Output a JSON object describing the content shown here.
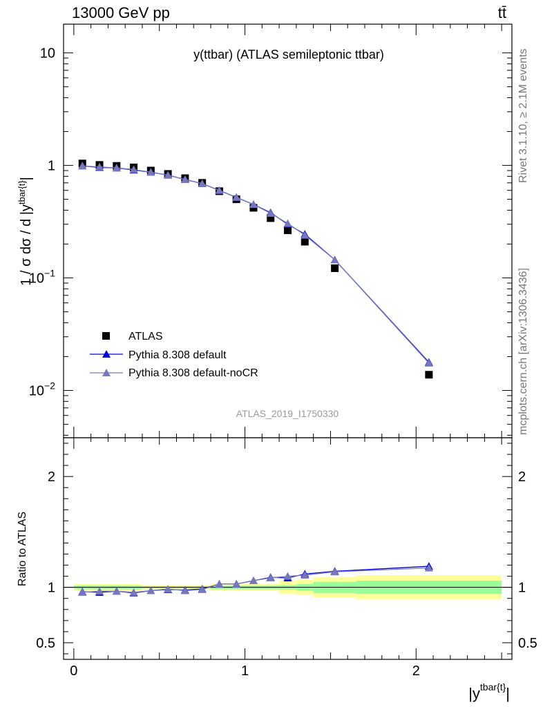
{
  "header": {
    "energy_label": "13000 GeV pp",
    "process_label": "tt̄",
    "analysis_id": "ATLAS_2019_I1750330",
    "rivet_label": "Rivet 3.1.10, ≥ 2.1M events",
    "mcplots_label": "mcplots.cern.ch [arXiv:1306.3436]"
  },
  "chart_data": [
    {
      "type": "scatter",
      "title": "y(ttbar) (ATLAS semileptonic ttbar)",
      "ylabel": "1 / σ dσ / d |y^{tbar{t}}|",
      "yscale": "log",
      "xlim": [
        -0.06,
        2.56
      ],
      "ylim": [
        0.0038,
        18
      ],
      "yticks": [
        {
          "value": 0.01,
          "base": "10",
          "exp": "−2"
        },
        {
          "value": 0.1,
          "base": "10",
          "exp": "−1"
        },
        {
          "value": 1,
          "label": "1"
        },
        {
          "value": 10,
          "label": "10"
        }
      ],
      "legend": {
        "placement": "bottom-left"
      },
      "series": [
        {
          "name": "ATLAS",
          "color": "#000000",
          "marker": "square",
          "line": false,
          "x": [
            0.05,
            0.15,
            0.25,
            0.35,
            0.45,
            0.55,
            0.65,
            0.75,
            0.85,
            0.95,
            1.05,
            1.15,
            1.25,
            1.35,
            1.525,
            2.075
          ],
          "values": [
            1.04,
            1.01,
            0.99,
            0.96,
            0.9,
            0.84,
            0.77,
            0.7,
            0.59,
            0.5,
            0.42,
            0.34,
            0.265,
            0.21,
            0.122,
            0.0138
          ]
        },
        {
          "name": "Pythia 8.308 default",
          "color": "#0000dd",
          "marker": "triangle",
          "line": true,
          "x": [
            0.05,
            0.15,
            0.25,
            0.35,
            0.45,
            0.55,
            0.65,
            0.75,
            0.85,
            0.95,
            1.05,
            1.15,
            1.25,
            1.35,
            1.525,
            2.075
          ],
          "values": [
            0.99,
            0.96,
            0.95,
            0.91,
            0.87,
            0.82,
            0.75,
            0.69,
            0.6,
            0.52,
            0.45,
            0.38,
            0.3,
            0.245,
            0.145,
            0.0178
          ]
        },
        {
          "name": "Pythia 8.308 default-noCR",
          "color": "#7777bb",
          "marker": "triangle",
          "line": true,
          "x": [
            0.05,
            0.15,
            0.25,
            0.35,
            0.45,
            0.55,
            0.65,
            0.75,
            0.85,
            0.95,
            1.05,
            1.15,
            1.25,
            1.35,
            1.525,
            2.075
          ],
          "values": [
            0.99,
            0.97,
            0.95,
            0.92,
            0.87,
            0.82,
            0.75,
            0.69,
            0.6,
            0.52,
            0.45,
            0.375,
            0.305,
            0.24,
            0.145,
            0.0175
          ]
        }
      ]
    },
    {
      "type": "line",
      "ylabel": "Ratio to ATLAS",
      "xlabel": "|y^{tbar{t}}|",
      "xlim": [
        -0.06,
        2.56
      ],
      "ylim": [
        0.35,
        2.35
      ],
      "xticks": [
        0,
        1,
        2
      ],
      "yticks": [
        0.5,
        1,
        2
      ],
      "uncertainty_bands": {
        "edges": [
          0,
          0.1,
          0.2,
          0.3,
          0.4,
          0.5,
          0.6,
          0.7,
          0.8,
          0.9,
          1.0,
          1.1,
          1.2,
          1.3,
          1.4,
          1.65,
          2.5
        ],
        "stat": [
          0.015,
          0.015,
          0.015,
          0.015,
          0.01,
          0.01,
          0.01,
          0.01,
          0.015,
          0.015,
          0.015,
          0.015,
          0.02,
          0.03,
          0.05,
          0.06
        ],
        "total": [
          0.03,
          0.03,
          0.03,
          0.03,
          0.02,
          0.02,
          0.02,
          0.02,
          0.03,
          0.03,
          0.03,
          0.03,
          0.06,
          0.07,
          0.09,
          0.11
        ]
      },
      "series": [
        {
          "name": "Pythia 8.308 default",
          "color": "#0000dd",
          "marker": "triangle",
          "x": [
            0.05,
            0.15,
            0.25,
            0.35,
            0.45,
            0.55,
            0.65,
            0.75,
            0.85,
            0.95,
            1.05,
            1.15,
            1.25,
            1.35,
            1.525,
            2.075
          ],
          "values": [
            0.96,
            0.955,
            0.965,
            0.95,
            0.97,
            0.98,
            0.975,
            0.985,
            1.03,
            1.03,
            1.06,
            1.09,
            1.085,
            1.12,
            1.145,
            1.19
          ]
        },
        {
          "name": "Pythia 8.308 default-noCR",
          "color": "#7777bb",
          "marker": "triangle",
          "x": [
            0.05,
            0.15,
            0.25,
            0.35,
            0.45,
            0.55,
            0.65,
            0.75,
            0.85,
            0.95,
            1.05,
            1.15,
            1.25,
            1.35,
            1.525,
            2.075
          ],
          "values": [
            0.955,
            0.965,
            0.965,
            0.955,
            0.97,
            0.985,
            0.97,
            0.98,
            1.03,
            1.03,
            1.06,
            1.085,
            1.1,
            1.11,
            1.14,
            1.175
          ]
        }
      ]
    }
  ]
}
